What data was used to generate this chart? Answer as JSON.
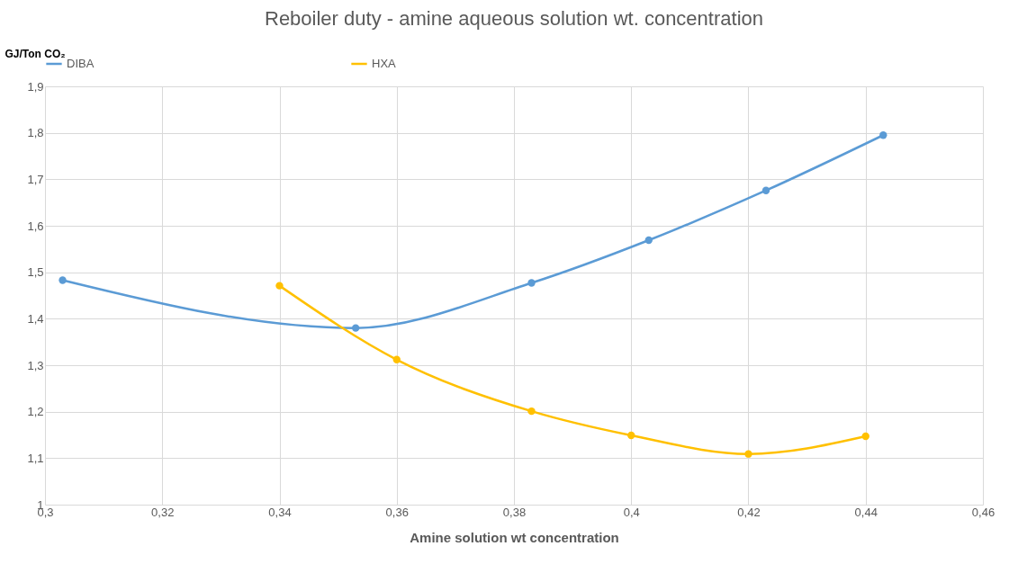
{
  "chart_data": {
    "type": "line",
    "title": "Reboiler duty - amine aqueous solution wt. concentration",
    "xlabel": "Amine solution wt concentration",
    "ylabel": "GJ/Ton CO₂",
    "series": [
      {
        "name": "DIBA",
        "color": "#5b9bd5",
        "x": [
          0.303,
          0.353,
          0.383,
          0.403,
          0.423,
          0.443
        ],
        "values": [
          1.483,
          1.38,
          1.477,
          1.569,
          1.676,
          1.795
        ]
      },
      {
        "name": "HXA",
        "color": "#ffc000",
        "x": [
          0.34,
          0.36,
          0.383,
          0.4,
          0.42,
          0.44
        ],
        "values": [
          1.471,
          1.312,
          1.201,
          1.149,
          1.109,
          1.147
        ]
      }
    ],
    "xlim": [
      0.3,
      0.46
    ],
    "ylim": [
      1,
      1.9
    ],
    "xticks": [
      {
        "value": 0.3,
        "label": "0,3"
      },
      {
        "value": 0.32,
        "label": "0,32"
      },
      {
        "value": 0.34,
        "label": "0,34"
      },
      {
        "value": 0.36,
        "label": "0,36"
      },
      {
        "value": 0.38,
        "label": "0,38"
      },
      {
        "value": 0.4,
        "label": "0,4"
      },
      {
        "value": 0.42,
        "label": "0,42"
      },
      {
        "value": 0.44,
        "label": "0,44"
      },
      {
        "value": 0.46,
        "label": "0,46"
      }
    ],
    "yticks": [
      1,
      {
        "value": 1.1,
        "label": "1,1"
      },
      {
        "value": 1.2,
        "label": "1,2"
      },
      {
        "value": 1.3,
        "label": "1,3"
      },
      {
        "value": 1.4,
        "label": "1,4"
      },
      {
        "value": 1.5,
        "label": "1,5"
      },
      {
        "value": 1.6,
        "label": "1,6"
      },
      {
        "value": 1.7,
        "label": "1,7"
      },
      {
        "value": 1.8,
        "label": "1,8"
      },
      {
        "value": 1.9,
        "label": "1,9"
      }
    ],
    "grid": true,
    "legend": "top",
    "marker": "circle",
    "line_style": "solid"
  }
}
